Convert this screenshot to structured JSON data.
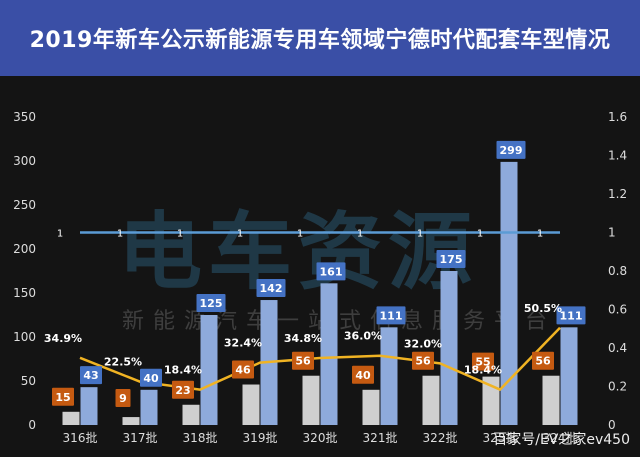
{
  "title": "2019年新车公示新能源专用车领域宁德时代配套车型情况",
  "watermark": {
    "main": "电车资源",
    "sub": "新能源汽车一站式信息服务平台"
  },
  "source": "百家号/EV之家ev450",
  "colors": {
    "title_bg": "#3a4fa6",
    "bg": "#141414",
    "bar_catl": "#cfcfcf",
    "bar_total": "#8eaadb",
    "label_catl": "#c55a11",
    "label_total": "#4472c4",
    "line_share": "#f0b323",
    "line_ref": "#5b9bd5"
  },
  "chart_data": {
    "type": "bar",
    "categories": [
      "316批",
      "317批",
      "318批",
      "319批",
      "320批",
      "321批",
      "322批",
      "323批",
      "324批"
    ],
    "series": [
      {
        "values": [
          15,
          9,
          23,
          46,
          56,
          40,
          56,
          55,
          56
        ],
        "axis": "left",
        "kind": "bar"
      },
      {
        "values": [
          43,
          40,
          125,
          142,
          161,
          111,
          175,
          299,
          111
        ],
        "axis": "left",
        "kind": "bar"
      },
      {
        "values": [
          0.349,
          0.225,
          0.184,
          0.324,
          0.348,
          0.36,
          0.32,
          0.184,
          0.505
        ],
        "axis": "right",
        "kind": "line",
        "labels": [
          "34.9%",
          "22.5%",
          "18.4%",
          "32.4%",
          "34.8%",
          "36.0%",
          "32.0%",
          "18.4%",
          "50.5%"
        ]
      },
      {
        "values": [
          1,
          1,
          1,
          1,
          1,
          1,
          1,
          1,
          1
        ],
        "axis": "right",
        "kind": "line",
        "labels": [
          "1",
          "1",
          "1",
          "1",
          "1",
          "1",
          "1",
          "1",
          "1"
        ]
      }
    ],
    "y_left": {
      "ylim": [
        0,
        350
      ],
      "ticks": [
        "0",
        "50",
        "100",
        "150",
        "200",
        "250",
        "300",
        "350"
      ]
    },
    "y_right": {
      "ylim": [
        0,
        1.6
      ],
      "ticks": [
        "0",
        "0.2",
        "0.4",
        "0.6",
        "0.8",
        "1",
        "1.2",
        "1.4",
        "1.6"
      ]
    },
    "grid": false
  }
}
